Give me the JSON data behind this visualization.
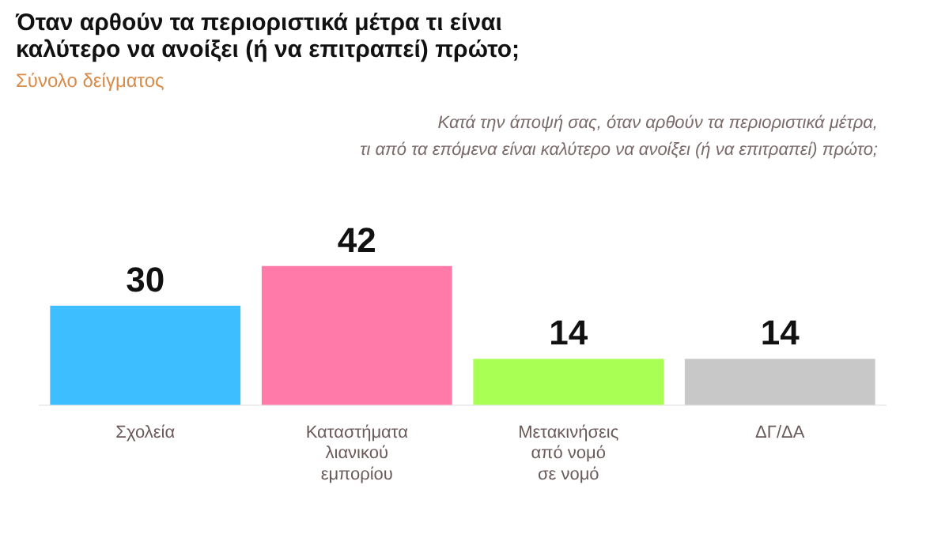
{
  "chart_data": {
    "type": "bar",
    "title": "Όταν αρθούν τα περιοριστικά μέτρα τι είναι καλύτερο να ανοίξει (ή να επιτραπεί) πρώτο;",
    "subtitle": "Σύνολο δείγματος",
    "annotations": [
      "Κατά την άποψή σας, όταν αρθούν τα περιοριστικά μέτρα,\nτι από τα επόμενα είναι καλύτερο να ανοίξει (ή να επιτραπεί) πρώτο;"
    ],
    "categories": [
      "Σχολεία",
      "Καταστήματα λιανικού εμπορίου",
      "Μετακινήσεις από νομό σε νομό",
      "ΔΓ/ΔΑ"
    ],
    "values": [
      30,
      42,
      14,
      14
    ],
    "colors": [
      "#3dbfff",
      "#ff7aa8",
      "#aaff55",
      "#c8c8c8"
    ],
    "data_labels": true,
    "legend": false
  }
}
